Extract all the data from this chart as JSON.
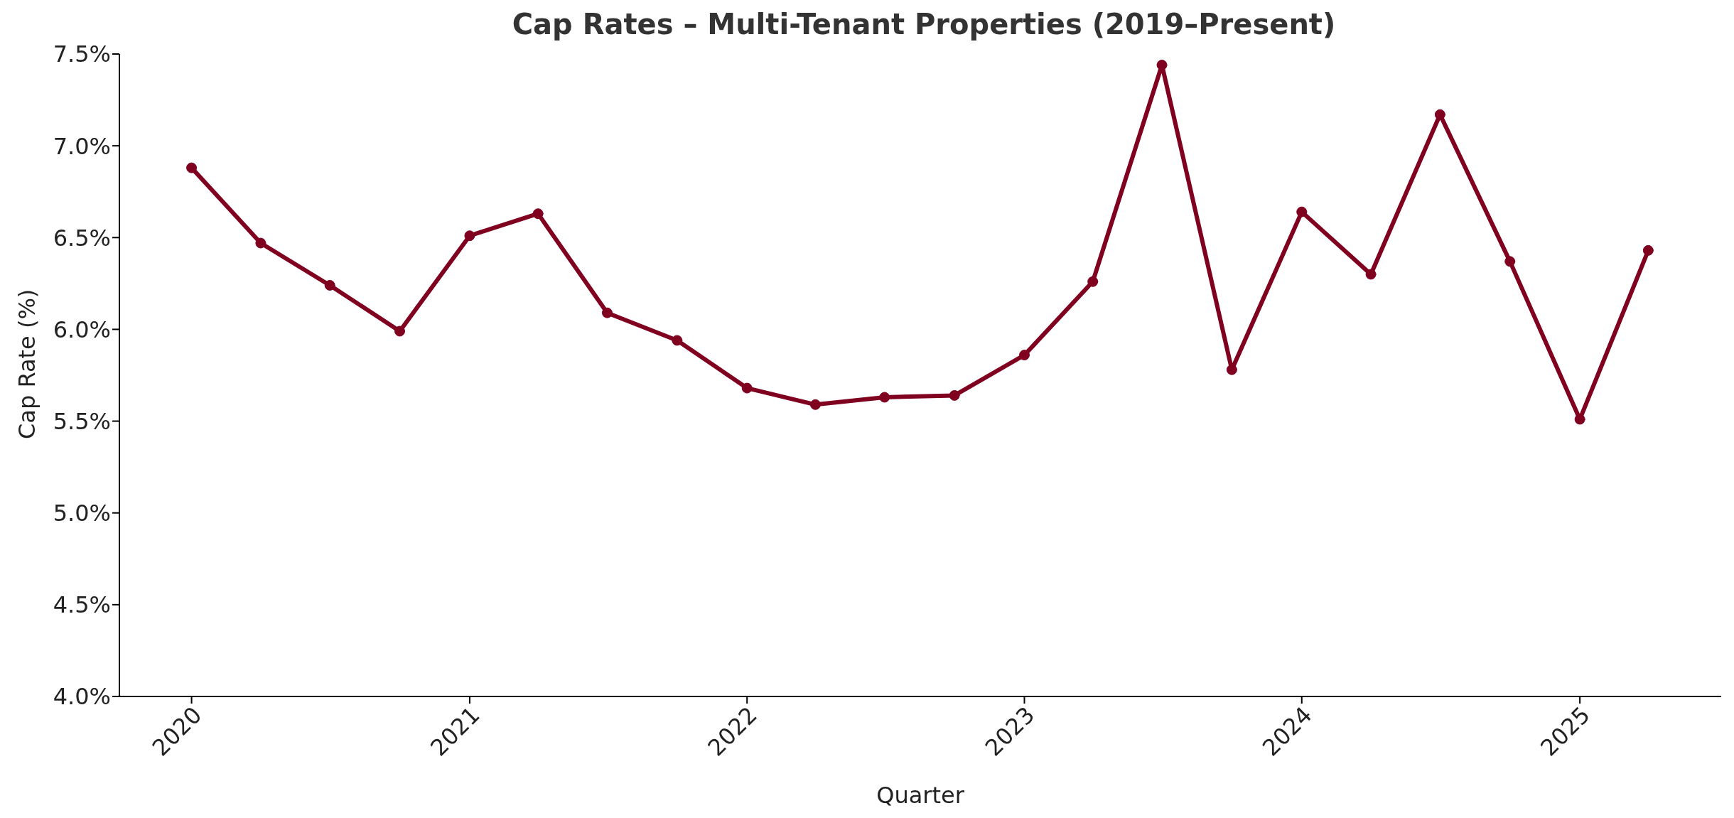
{
  "chart_data": {
    "type": "line",
    "title": "Cap Rates – Multi-Tenant Properties (2019–Present)",
    "xlabel": "Quarter",
    "ylabel": "Cap Rate (%)",
    "x": [
      "2020-01-01",
      "2020-04-01",
      "2020-07-01",
      "2020-10-01",
      "2021-01-01",
      "2021-04-01",
      "2021-07-01",
      "2021-10-01",
      "2022-01-01",
      "2022-04-01",
      "2022-07-01",
      "2022-10-01",
      "2023-01-01",
      "2023-04-01",
      "2023-07-01",
      "2023-10-01",
      "2024-01-01",
      "2024-04-01",
      "2024-07-01",
      "2024-10-01",
      "2025-01-01",
      "2025-04-01"
    ],
    "series": [
      {
        "color": "#800020",
        "values": [
          6.88,
          6.47,
          6.24,
          5.99,
          6.51,
          6.63,
          6.09,
          5.94,
          5.68,
          5.59,
          5.63,
          5.64,
          5.86,
          6.26,
          7.44,
          5.78,
          6.64,
          6.3,
          7.17,
          6.37,
          5.51,
          6.43
        ]
      }
    ],
    "xlim": [
      "2019-09-28",
      "2025-07-06"
    ],
    "xticks": [
      "2020",
      "2021",
      "2022",
      "2023",
      "2024",
      "2025"
    ],
    "ylim": [
      4.0,
      7.5
    ],
    "yticks": [
      {
        "value": 4.0,
        "label": "4.0%"
      },
      {
        "value": 4.5,
        "label": "4.5%"
      },
      {
        "value": 5.0,
        "label": "5.0%"
      },
      {
        "value": 5.5,
        "label": "5.5%"
      },
      {
        "value": 6.0,
        "label": "6.0%"
      },
      {
        "value": 6.5,
        "label": "6.5%"
      },
      {
        "value": 7.0,
        "label": "7.0%"
      },
      {
        "value": 7.5,
        "label": "7.5%"
      }
    ],
    "marker": "circle",
    "line_style": "solid",
    "grid": false,
    "legend": false
  }
}
